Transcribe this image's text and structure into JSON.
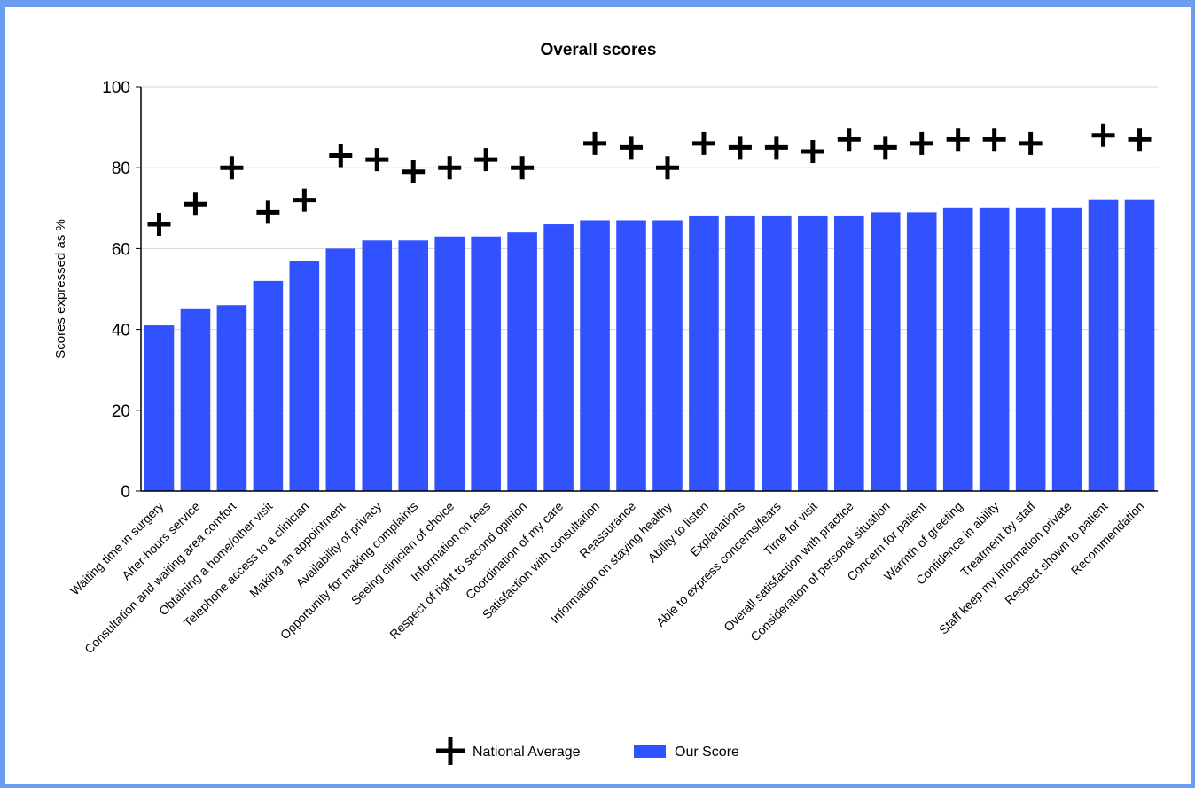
{
  "chart_data": {
    "type": "bar",
    "title": "Overall scores",
    "ylabel": "Scores expressed as %",
    "xlabel": "",
    "ylim": [
      0,
      100
    ],
    "yticks": [
      0,
      20,
      40,
      60,
      80,
      100
    ],
    "grid": true,
    "legend_position": "bottom",
    "categories": [
      "Waiting time in surgery",
      "After-hours service",
      "Consultation and waiting area comfort",
      "Obtaining a home/other visit",
      "Telephone access to a clinician",
      "Making an appointment",
      "Availability of privacy",
      "Opportunity for making complaints",
      "Seeing clinician of choice",
      "Information on fees",
      "Respect of right to second opinion",
      "Coordination of my care",
      "Satisfaction with consultation",
      "Reassurance",
      "Information on staying healthy",
      "Ability to listen",
      "Explanations",
      "Able to express concerns/fears",
      "Time for visit",
      "Overall satisfaction with practice",
      "Consideration of personal situation",
      "Concern for patient",
      "Warmth of greeting",
      "Confidence in ability",
      "Treatment by staff",
      "Staff keep my information private",
      "Respect shown to patient",
      "Recommendation"
    ],
    "series": [
      {
        "name": "Our Score",
        "kind": "bar",
        "color": "#3352ff",
        "values": [
          41,
          45,
          46,
          52,
          57,
          60,
          62,
          62,
          63,
          63,
          64,
          66,
          67,
          67,
          67,
          68,
          68,
          68,
          68,
          68,
          69,
          69,
          70,
          70,
          70,
          70,
          72,
          72
        ]
      },
      {
        "name": "National Average",
        "kind": "marker",
        "marker": "plus",
        "color": "#000000",
        "values": [
          66,
          71,
          80,
          69,
          72,
          83,
          82,
          79,
          80,
          82,
          80,
          null,
          86,
          85,
          80,
          86,
          85,
          85,
          84,
          87,
          85,
          86,
          87,
          87,
          86,
          null,
          88,
          87
        ]
      }
    ]
  }
}
